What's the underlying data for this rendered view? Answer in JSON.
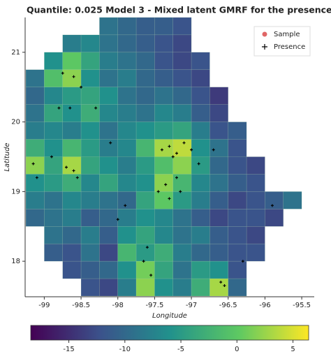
{
  "chart_data": {
    "type": "heatmap",
    "title": "Quantile: 0.025 Model 3 - Mixed latent GMRF for the presence",
    "x_label": "Longitude",
    "y_label": "Latitude",
    "xlim": [
      -99.26,
      -95.33
    ],
    "ylim": [
      17.49,
      21.5
    ],
    "xticks": [
      -99,
      -98.5,
      -98,
      -97.5,
      -97,
      -96.5,
      -96,
      -95.5
    ],
    "yticks": [
      18,
      19,
      20,
      21
    ],
    "x": [
      -99.125,
      -98.875,
      -98.625,
      -98.375,
      -98.125,
      -97.875,
      -97.625,
      -97.375,
      -97.125,
      -96.875,
      -96.625,
      -96.375,
      -96.125,
      -95.875,
      -95.625,
      -95.375
    ],
    "y": [
      21.375,
      21.125,
      20.875,
      20.625,
      20.375,
      20.125,
      19.875,
      19.625,
      19.375,
      19.125,
      18.875,
      18.625,
      18.375,
      18.125,
      17.875,
      17.625
    ],
    "values": [
      [
        null,
        null,
        null,
        null,
        -9,
        -10,
        -11,
        -11,
        -12,
        null,
        null,
        null,
        null,
        null,
        null,
        null
      ],
      [
        null,
        null,
        -8,
        -7,
        -9,
        -10,
        -11,
        -12,
        -13,
        null,
        null,
        null,
        null,
        null,
        null,
        null
      ],
      [
        null,
        -6,
        0,
        -4,
        -8,
        -9,
        -10,
        -12,
        -13,
        -12,
        null,
        null,
        null,
        null,
        null,
        null
      ],
      [
        -9,
        -1,
        2,
        -6,
        -9,
        -8,
        -10,
        -11,
        -12,
        -13,
        null,
        null,
        null,
        null,
        null,
        null
      ],
      [
        -10,
        -7,
        -5,
        -4,
        -6,
        -9,
        -10,
        -9,
        -10,
        -12,
        -14,
        null,
        null,
        null,
        null,
        null
      ],
      [
        -9,
        -4,
        -6,
        -3,
        -7,
        -8,
        -9,
        -7,
        -8,
        -11,
        -13,
        null,
        null,
        null,
        null,
        null
      ],
      [
        -8,
        -7,
        -8,
        -6,
        -9,
        -7,
        -6,
        -5,
        -4,
        -8,
        -12,
        -11,
        null,
        null,
        null,
        null
      ],
      [
        -3,
        -6,
        -2,
        -5,
        -8,
        -7,
        -2,
        3,
        4,
        -6,
        -9,
        -12,
        null,
        null,
        null,
        null
      ],
      [
        2,
        -4,
        3,
        -4,
        -6,
        -8,
        -5,
        -1,
        2,
        -5,
        -10,
        -12,
        -13,
        null,
        null,
        null
      ],
      [
        -6,
        -5,
        -3,
        -7,
        -4,
        -7,
        -6,
        2,
        -2,
        -7,
        -9,
        -11,
        -12,
        null,
        null,
        null
      ],
      [
        -8,
        -9,
        -7,
        -8,
        -9,
        -10,
        -4,
        0,
        -5,
        -8,
        -11,
        -13,
        -12,
        -11,
        -9,
        null
      ],
      [
        -10,
        -9,
        -8,
        -11,
        -10,
        -8,
        -6,
        -7,
        -9,
        -11,
        -13,
        -12,
        -12,
        -13,
        null,
        null
      ],
      [
        null,
        -9,
        -10,
        -8,
        -11,
        -6,
        -4,
        -7,
        -9,
        -8,
        -11,
        -12,
        -13,
        null,
        null,
        null
      ],
      [
        null,
        -11,
        -12,
        -9,
        -13,
        -2,
        -5,
        -3,
        -8,
        -10,
        -11,
        -12,
        -12,
        null,
        null,
        null
      ],
      [
        null,
        null,
        -12,
        -11,
        -10,
        -6,
        1,
        -4,
        -9,
        -5,
        -6,
        -12,
        null,
        null,
        null,
        null
      ],
      [
        null,
        null,
        null,
        -12,
        -13,
        -8,
        2,
        -6,
        -8,
        -3,
        3,
        -10,
        null,
        null,
        null,
        null
      ]
    ],
    "colormap": [
      "#440154",
      "#3b528b",
      "#21918c",
      "#5ec962",
      "#fde725"
    ],
    "clim": [
      -18.4,
      6.4
    ],
    "cticks": [
      -15,
      -10,
      -5,
      0,
      5
    ],
    "series": [
      {
        "name": "Sample",
        "color": "#e06666",
        "x": [],
        "y": []
      },
      {
        "name": "Presence",
        "color": "#000000",
        "x": [
          -98.75,
          -98.6,
          -98.5,
          -98.8,
          -98.65,
          -98.3,
          -98.9,
          -98.7,
          -98.6,
          -98.55,
          -99.15,
          -99.1,
          -97.4,
          -97.3,
          -97.2,
          -97.1,
          -97.0,
          -97.25,
          -97.35,
          -97.15,
          -97.3,
          -97.2,
          -97.45,
          -97.6,
          -97.65,
          -97.55,
          -96.6,
          -96.55,
          -98.0,
          -97.9,
          -96.9,
          -96.7,
          -98.1,
          -96.3,
          -95.9
        ],
        "y": [
          20.7,
          20.65,
          20.5,
          20.2,
          20.2,
          20.2,
          19.5,
          19.35,
          19.3,
          19.2,
          19.4,
          19.2,
          19.6,
          19.65,
          19.55,
          19.7,
          19.6,
          19.5,
          19.1,
          19.0,
          18.9,
          19.2,
          19.0,
          18.2,
          18.0,
          17.8,
          17.7,
          17.65,
          18.6,
          18.8,
          19.4,
          19.6,
          19.7,
          18.0,
          18.8
        ]
      }
    ],
    "legend": "upper right"
  }
}
